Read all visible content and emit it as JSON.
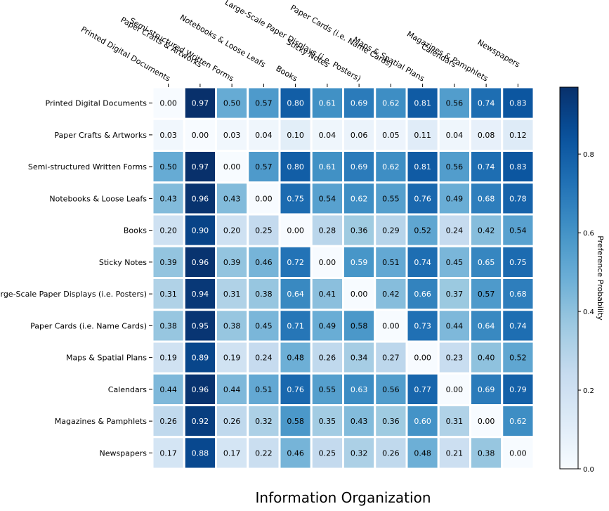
{
  "chart_data": {
    "type": "heatmap",
    "title": "Information Organization",
    "colorbar_label": "Preference Probability",
    "colorbar_ticks": [
      0.0,
      0.2,
      0.4,
      0.6,
      0.8
    ],
    "colorbar_tick_labels": [
      "0.0",
      "0.2",
      "0.4",
      "0.6",
      "0.8"
    ],
    "colorbar_range": [
      0.0,
      0.97
    ],
    "colormap": "Blues",
    "colors": {
      "low": "#f7fbff",
      "high": "#08306b",
      "grid": "#ffffff"
    },
    "rows": [
      "Printed Digital Documents",
      "Paper Crafts & Artworks",
      "Semi-structured Written Forms",
      "Notebooks & Loose Leafs",
      "Books",
      "Sticky Notes",
      "Large-Scale Paper Displays (i.e. Posters)",
      "Paper Cards (i.e. Name Cards)",
      "Maps & Spatial Plans",
      "Calendars",
      "Magazines & Pamphlets",
      "Newspapers"
    ],
    "columns": [
      "Printed Digital Documents",
      "Paper Crafts & Artworks",
      "Semi-structured Written Forms",
      "Notebooks & Loose Leafs",
      "Books",
      "Sticky Notes",
      "Large-Scale Paper Displays (i.e. Posters)",
      "Paper Cards (i.e. Name Cards)",
      "Maps & Spatial Plans",
      "Calendars",
      "Magazines & Pamphlets",
      "Newspapers"
    ],
    "values": [
      [
        0.0,
        0.97,
        0.5,
        0.57,
        0.8,
        0.61,
        0.69,
        0.62,
        0.81,
        0.56,
        0.74,
        0.83
      ],
      [
        0.03,
        0.0,
        0.03,
        0.04,
        0.1,
        0.04,
        0.06,
        0.05,
        0.11,
        0.04,
        0.08,
        0.12
      ],
      [
        0.5,
        0.97,
        0.0,
        0.57,
        0.8,
        0.61,
        0.69,
        0.62,
        0.81,
        0.56,
        0.74,
        0.83
      ],
      [
        0.43,
        0.96,
        0.43,
        0.0,
        0.75,
        0.54,
        0.62,
        0.55,
        0.76,
        0.49,
        0.68,
        0.78
      ],
      [
        0.2,
        0.9,
        0.2,
        0.25,
        0.0,
        0.28,
        0.36,
        0.29,
        0.52,
        0.24,
        0.42,
        0.54
      ],
      [
        0.39,
        0.96,
        0.39,
        0.46,
        0.72,
        0.0,
        0.59,
        0.51,
        0.74,
        0.45,
        0.65,
        0.75
      ],
      [
        0.31,
        0.94,
        0.31,
        0.38,
        0.64,
        0.41,
        0.0,
        0.42,
        0.66,
        0.37,
        0.57,
        0.68
      ],
      [
        0.38,
        0.95,
        0.38,
        0.45,
        0.71,
        0.49,
        0.58,
        0.0,
        0.73,
        0.44,
        0.64,
        0.74
      ],
      [
        0.19,
        0.89,
        0.19,
        0.24,
        0.48,
        0.26,
        0.34,
        0.27,
        0.0,
        0.23,
        0.4,
        0.52
      ],
      [
        0.44,
        0.96,
        0.44,
        0.51,
        0.76,
        0.55,
        0.63,
        0.56,
        0.77,
        0.0,
        0.69,
        0.79
      ],
      [
        0.26,
        0.92,
        0.26,
        0.32,
        0.58,
        0.35,
        0.43,
        0.36,
        0.6,
        0.31,
        0.0,
        0.62
      ],
      [
        0.17,
        0.88,
        0.17,
        0.22,
        0.46,
        0.25,
        0.32,
        0.26,
        0.48,
        0.21,
        0.38,
        0.0
      ]
    ]
  }
}
